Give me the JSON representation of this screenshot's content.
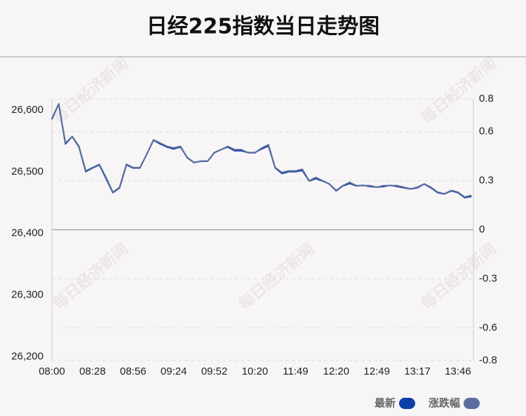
{
  "chart_data": {
    "type": "line",
    "title": "日经225指数当日走势图",
    "watermark": "每日经济新闻",
    "categories": [
      "08:00",
      null,
      null,
      null,
      null,
      null,
      "08:28",
      null,
      null,
      null,
      null,
      null,
      "08:56",
      null,
      null,
      null,
      null,
      null,
      "09:24",
      null,
      null,
      null,
      null,
      null,
      "09:52",
      null,
      null,
      null,
      null,
      null,
      "10:20",
      null,
      null,
      null,
      null,
      null,
      "11:49",
      null,
      null,
      null,
      null,
      null,
      "12:20",
      null,
      null,
      null,
      null,
      null,
      "12:49",
      null,
      null,
      null,
      null,
      null,
      "13:17",
      null,
      null,
      null,
      null,
      null,
      "13:46",
      null,
      null
    ],
    "series": [
      {
        "name": "最新",
        "color": "#0d3ea8",
        "axis": "y",
        "values": [
          26585,
          26610,
          26545,
          26557,
          26540,
          26500,
          26506,
          26511,
          26489,
          26466,
          26474,
          26511,
          26506,
          26506,
          26528,
          26551,
          26545,
          26540,
          26537,
          26540,
          26523,
          26515,
          26517,
          26517,
          26531,
          26536,
          26540,
          26534,
          26534,
          26531,
          26531,
          26537,
          26542,
          26506,
          26497,
          26500,
          26500,
          26502,
          26485,
          26489,
          26485,
          26480,
          26469,
          26477,
          26481,
          26477,
          26478,
          26476,
          26475,
          26476,
          26478,
          26476,
          26474,
          26472,
          26474,
          26480,
          26474,
          26466,
          26464,
          26469,
          26466,
          26458,
          26460
        ]
      },
      {
        "name": "涨跌幅",
        "color": "#5b6f9e",
        "axis": "y2",
        "values": [
          0.68,
          0.77,
          0.53,
          0.57,
          0.51,
          0.36,
          0.38,
          0.4,
          0.32,
          0.23,
          0.26,
          0.4,
          0.38,
          0.38,
          0.46,
          0.55,
          0.53,
          0.51,
          0.5,
          0.51,
          0.44,
          0.41,
          0.42,
          0.42,
          0.47,
          0.49,
          0.51,
          0.49,
          0.49,
          0.47,
          0.47,
          0.5,
          0.52,
          0.38,
          0.35,
          0.36,
          0.36,
          0.37,
          0.3,
          0.32,
          0.3,
          0.28,
          0.24,
          0.27,
          0.29,
          0.27,
          0.27,
          0.27,
          0.26,
          0.27,
          0.27,
          0.27,
          0.26,
          0.25,
          0.26,
          0.28,
          0.26,
          0.23,
          0.22,
          0.24,
          0.23,
          0.2,
          0.21
        ]
      }
    ],
    "ylim": [
      26194,
      26618
    ],
    "yticks": [
      {
        "value": 26200,
        "label": "26,200"
      },
      {
        "value": 26300,
        "label": "26,300"
      },
      {
        "value": 26400,
        "label": "26,400"
      },
      {
        "value": 26500,
        "label": "26,500"
      },
      {
        "value": 26600,
        "label": "26,600"
      }
    ],
    "y2lim": [
      -0.8,
      0.8
    ],
    "y2ticks": [
      -0.8,
      -0.6,
      -0.3,
      0,
      0.3,
      0.6,
      0.8
    ],
    "grid": true,
    "legend": "bottom-right"
  }
}
